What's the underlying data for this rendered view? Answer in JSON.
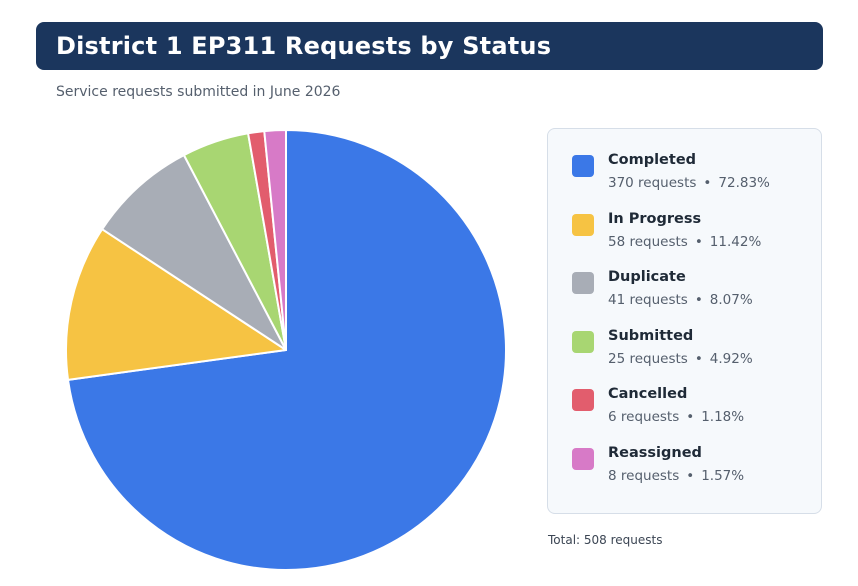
{
  "header": {
    "title": "District 1 EP311 Requests by Status",
    "subtitle": "Service requests submitted in June 2026"
  },
  "chart_data": {
    "type": "pie",
    "title": "District 1 EP311 Requests by Status",
    "subtitle": "Service requests submitted in June 2026",
    "unit": "requests",
    "slices": [
      {
        "label": "Completed",
        "value": 370,
        "percent_label": "72.83%",
        "detail": "370 requests",
        "color": "#3b78e7"
      },
      {
        "label": "In Progress",
        "value": 58,
        "percent_label": "11.42%",
        "detail": "58 requests",
        "color": "#f6c343"
      },
      {
        "label": "Duplicate",
        "value": 41,
        "percent_label": "8.07%",
        "detail": "41 requests",
        "color": "#a8adb6"
      },
      {
        "label": "Submitted",
        "value": 25,
        "percent_label": "4.92%",
        "detail": "25 requests",
        "color": "#a8d672"
      },
      {
        "label": "Cancelled",
        "value": 6,
        "percent_label": "1.18%",
        "detail": "6 requests",
        "color": "#e25d6d"
      },
      {
        "label": "Reassigned",
        "value": 8,
        "percent_label": "1.57%",
        "detail": "8 requests",
        "color": "#d77ac7"
      }
    ],
    "legend_position": "right",
    "total_label": "Total: 508 requests"
  }
}
